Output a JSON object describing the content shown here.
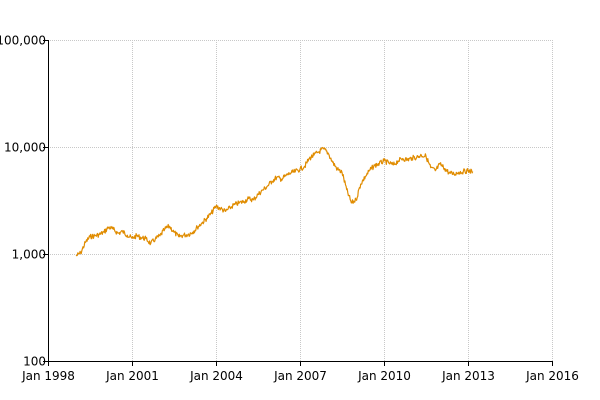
{
  "chart_data": {
    "type": "line",
    "title": "",
    "xlabel": "",
    "ylabel": "",
    "y_scale": "log",
    "ylim": [
      100,
      100000
    ],
    "xlim": [
      "1998-01",
      "2016-01"
    ],
    "grid": true,
    "legend": "none",
    "y_ticks": [
      {
        "value": 100,
        "label": "100"
      },
      {
        "value": 1000,
        "label": "1,000"
      },
      {
        "value": 10000,
        "label": "10,000"
      },
      {
        "value": 100000,
        "label": "100,000"
      }
    ],
    "x_ticks": [
      {
        "value": "1998-01",
        "label": "Jan 1998"
      },
      {
        "value": "2001-01",
        "label": "Jan 2001"
      },
      {
        "value": "2004-01",
        "label": "Jan 2004"
      },
      {
        "value": "2007-01",
        "label": "Jan 2007"
      },
      {
        "value": "2010-01",
        "label": "Jan 2010"
      },
      {
        "value": "2013-01",
        "label": "Jan 2013"
      },
      {
        "value": "2016-01",
        "label": "Jan 2016"
      }
    ],
    "series": [
      {
        "color": "#e08c00",
        "x": [
          "1999-01",
          "1999-03",
          "1999-05",
          "1999-07",
          "1999-09",
          "1999-11",
          "2000-01",
          "2000-03",
          "2000-05",
          "2000-07",
          "2000-09",
          "2000-11",
          "2001-01",
          "2001-03",
          "2001-05",
          "2001-07",
          "2001-09",
          "2001-11",
          "2002-01",
          "2002-03",
          "2002-05",
          "2002-07",
          "2002-09",
          "2002-11",
          "2003-01",
          "2003-03",
          "2003-05",
          "2003-07",
          "2003-09",
          "2003-11",
          "2004-01",
          "2004-03",
          "2004-05",
          "2004-07",
          "2004-09",
          "2004-11",
          "2005-01",
          "2005-03",
          "2005-05",
          "2005-07",
          "2005-09",
          "2005-11",
          "2006-01",
          "2006-03",
          "2006-05",
          "2006-07",
          "2006-09",
          "2006-11",
          "2007-01",
          "2007-03",
          "2007-05",
          "2007-07",
          "2007-09",
          "2007-11",
          "2008-01",
          "2008-03",
          "2008-05",
          "2008-07",
          "2008-09",
          "2008-11",
          "2009-01",
          "2009-03",
          "2009-05",
          "2009-07",
          "2009-09",
          "2009-11",
          "2010-01",
          "2010-03",
          "2010-05",
          "2010-07",
          "2010-09",
          "2010-11",
          "2011-01",
          "2011-03",
          "2011-05",
          "2011-07",
          "2011-09",
          "2011-11",
          "2012-01",
          "2012-03",
          "2012-05",
          "2012-07",
          "2012-09",
          "2012-11",
          "2013-01",
          "2013-03"
        ],
        "y": [
          960,
          1020,
          1280,
          1450,
          1480,
          1520,
          1600,
          1780,
          1700,
          1560,
          1620,
          1500,
          1400,
          1480,
          1420,
          1390,
          1250,
          1380,
          1480,
          1700,
          1820,
          1600,
          1450,
          1500,
          1520,
          1600,
          1780,
          1950,
          2150,
          2400,
          2800,
          2650,
          2500,
          2700,
          2900,
          3000,
          3100,
          3300,
          3200,
          3600,
          3950,
          4300,
          4800,
          5200,
          5000,
          5400,
          5700,
          5900,
          6200,
          6600,
          7800,
          8400,
          9000,
          9600,
          8800,
          7200,
          6200,
          5800,
          4000,
          3000,
          3200,
          4500,
          5300,
          6100,
          6700,
          7000,
          7400,
          7100,
          6800,
          7400,
          7800,
          7600,
          7900,
          8000,
          8400,
          8200,
          6400,
          6000,
          6900,
          6300,
          5700,
          5600,
          5800,
          5900,
          6000,
          5900
        ]
      }
    ]
  }
}
